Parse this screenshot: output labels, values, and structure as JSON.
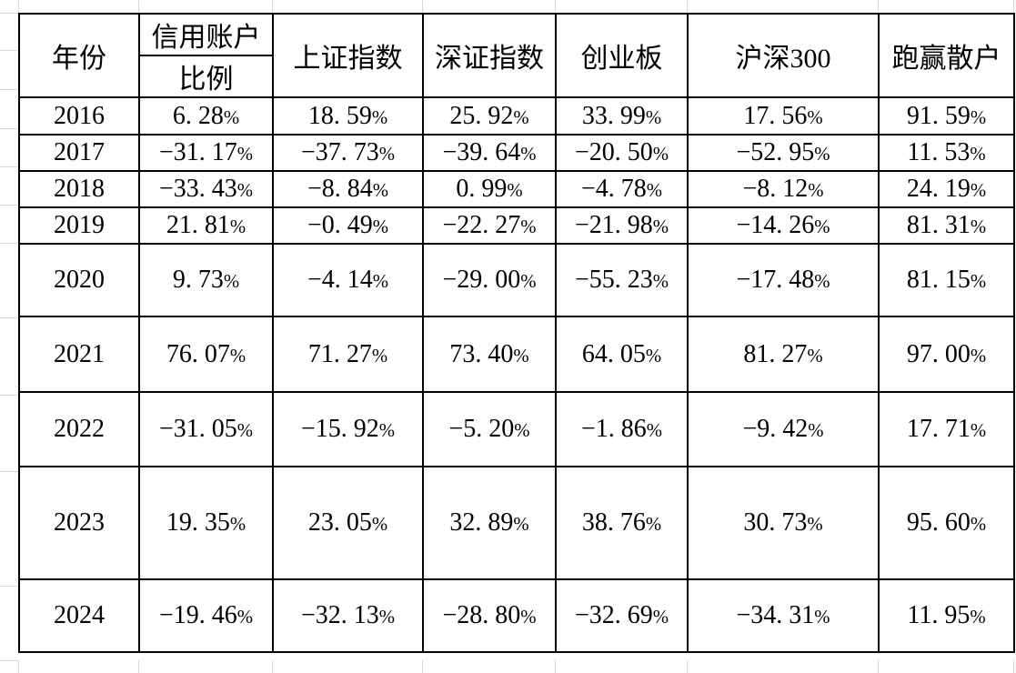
{
  "colors": {
    "background": "#ffffff",
    "table_border": "#000000",
    "sheet_gridline": "#d9d9d9",
    "text": "#000000"
  },
  "table": {
    "header": {
      "year": "年份",
      "credit_top": "信用账户",
      "credit_bottom": "比例",
      "sse": "上证指数",
      "szse": "深证指数",
      "chinext": "创业板",
      "csi300": "沪深300",
      "beat_retail": "跑赢散户"
    },
    "rows": [
      {
        "year": "2016",
        "credit": "6. 28%",
        "sse": "18. 59%",
        "szse": "25. 92%",
        "chinext": "33. 99%",
        "csi300": "17. 56%",
        "beat": "91. 59%"
      },
      {
        "year": "2017",
        "credit": "−31. 17%",
        "sse": "−37. 73%",
        "szse": "−39. 64%",
        "chinext": "−20. 50%",
        "csi300": "−52. 95%",
        "beat": "11. 53%"
      },
      {
        "year": "2018",
        "credit": "−33. 43%",
        "sse": "−8. 84%",
        "szse": "0. 99%",
        "chinext": "−4. 78%",
        "csi300": "−8. 12%",
        "beat": "24. 19%"
      },
      {
        "year": "2019",
        "credit": "21. 81%",
        "sse": "−0. 49%",
        "szse": "−22. 27%",
        "chinext": "−21. 98%",
        "csi300": "−14. 26%",
        "beat": "81. 31%"
      },
      {
        "year": "2020",
        "credit": "9. 73%",
        "sse": "−4. 14%",
        "szse": "−29. 00%",
        "chinext": "−55. 23%",
        "csi300": "−17. 48%",
        "beat": "81. 15%"
      },
      {
        "year": "2021",
        "credit": "76. 07%",
        "sse": "71. 27%",
        "szse": "73. 40%",
        "chinext": "64. 05%",
        "csi300": "81. 27%",
        "beat": "97. 00%"
      },
      {
        "year": "2022",
        "credit": "−31. 05%",
        "sse": "−15. 92%",
        "szse": "−5. 20%",
        "chinext": "−1. 86%",
        "csi300": "−9. 42%",
        "beat": "17. 71%"
      },
      {
        "year": "2023",
        "credit": "19. 35%",
        "sse": "23. 05%",
        "szse": "32. 89%",
        "chinext": "38. 76%",
        "csi300": "30. 73%",
        "beat": "95. 60%"
      },
      {
        "year": "2024",
        "credit": "−19. 46%",
        "sse": "−32. 13%",
        "szse": "−28. 80%",
        "chinext": "−32. 69%",
        "csi300": "−34. 31%",
        "beat": "11. 95%"
      }
    ]
  },
  "chart_data": {
    "type": "table",
    "title": "",
    "categories": [
      "2016",
      "2017",
      "2018",
      "2019",
      "2020",
      "2021",
      "2022",
      "2023",
      "2024"
    ],
    "series": [
      {
        "name": "信用账户比例",
        "values": [
          6.28,
          -31.17,
          -33.43,
          21.81,
          9.73,
          76.07,
          -31.05,
          19.35,
          -19.46
        ]
      },
      {
        "name": "上证指数",
        "values": [
          18.59,
          -37.73,
          -8.84,
          -0.49,
          -4.14,
          71.27,
          -15.92,
          23.05,
          -32.13
        ]
      },
      {
        "name": "深证指数",
        "values": [
          25.92,
          -39.64,
          0.99,
          -22.27,
          -29.0,
          73.4,
          -5.2,
          32.89,
          -28.8
        ]
      },
      {
        "name": "创业板",
        "values": [
          33.99,
          -20.5,
          -4.78,
          -21.98,
          -55.23,
          64.05,
          -1.86,
          38.76,
          -32.69
        ]
      },
      {
        "name": "沪深300",
        "values": [
          17.56,
          -52.95,
          -8.12,
          -14.26,
          -17.48,
          81.27,
          -9.42,
          30.73,
          -34.31
        ]
      },
      {
        "name": "跑赢散户",
        "values": [
          91.59,
          11.53,
          24.19,
          81.31,
          81.15,
          97.0,
          17.71,
          95.6,
          11.95
        ]
      }
    ],
    "unit": "%"
  }
}
